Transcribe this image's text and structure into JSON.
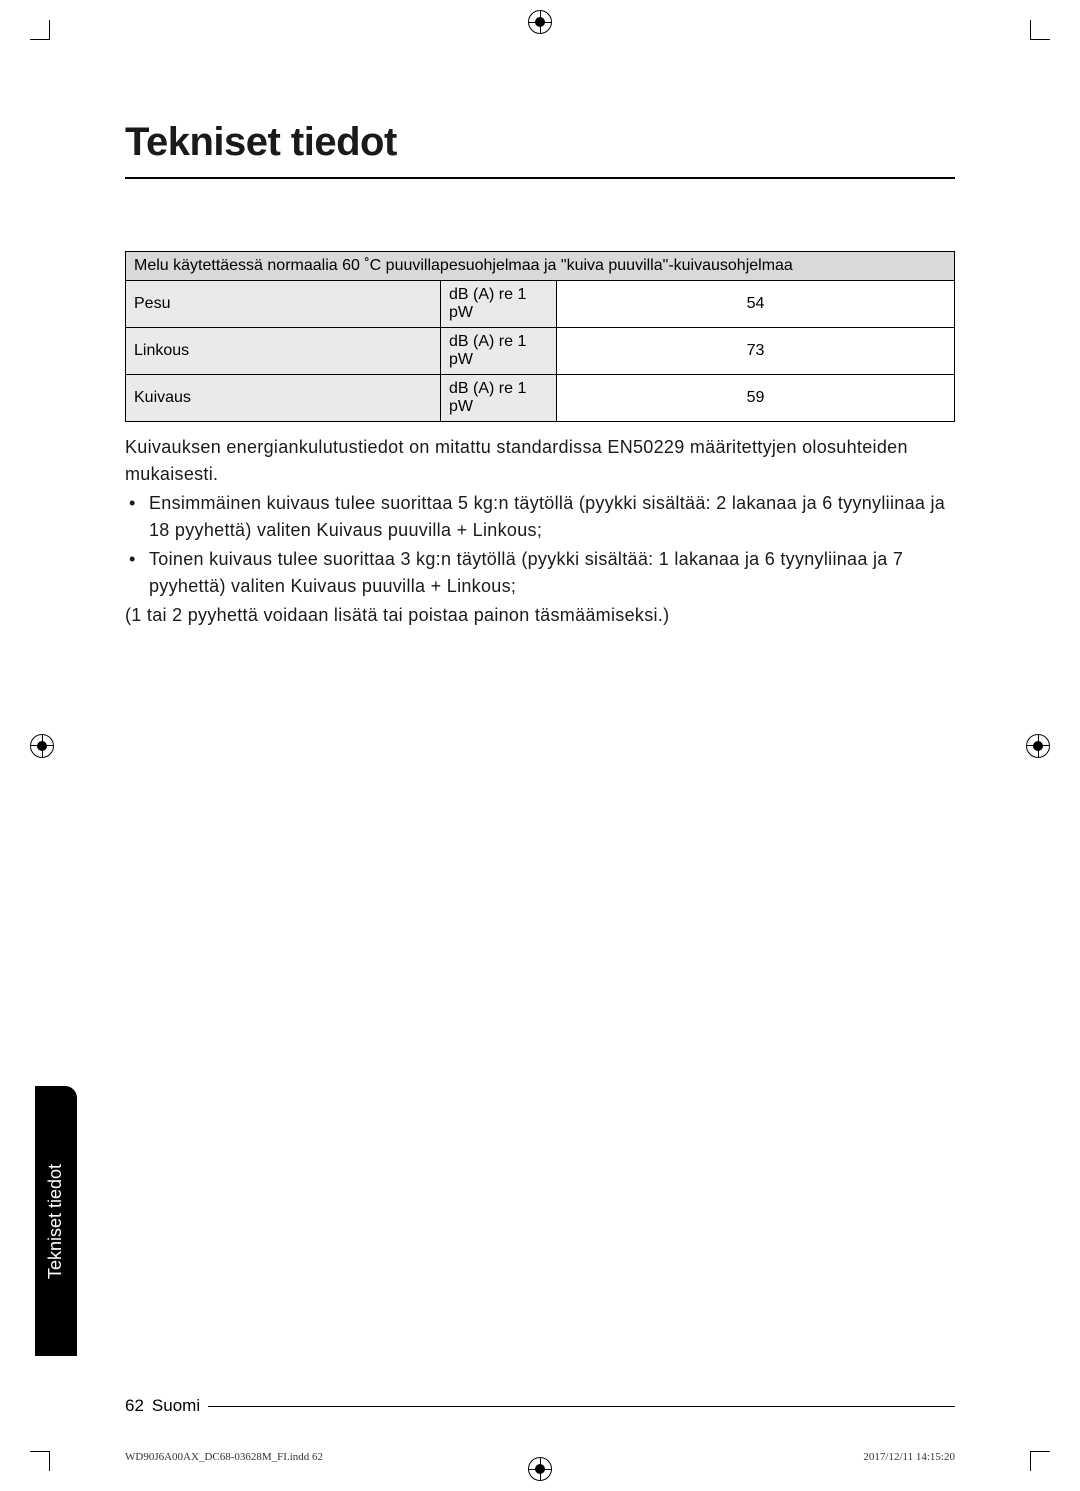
{
  "pageTitle": "Tekniset tiedot",
  "table": {
    "headerText": "Melu käytettäessä normaalia 60 ˚C puuvillapesuohjelmaa ja \"kuiva puuvilla\"-kuivausohjelmaa",
    "rows": [
      {
        "label": "Pesu",
        "unit": "dB (A) re 1 pW",
        "value": "54"
      },
      {
        "label": "Linkous",
        "unit": "dB (A) re 1 pW",
        "value": "73"
      },
      {
        "label": "Kuivaus",
        "unit": "dB (A) re 1 pW",
        "value": "59"
      }
    ]
  },
  "bodyText": {
    "intro": "Kuivauksen energiankulutustiedot on mitattu standardissa EN50229 määritettyjen olosuhteiden mukaisesti.",
    "bullet1": "Ensimmäinen kuivaus tulee suorittaa 5 kg:n täytöllä (pyykki sisältää: 2 lakanaa ja 6 tyynyliinaa ja 18 pyyhettä) valiten Kuivaus puuvilla + Linkous;",
    "bullet2": "Toinen kuivaus tulee suorittaa 3 kg:n täytöllä (pyykki sisältää: 1 lakanaa ja 6 tyynyliinaa ja 7 pyyhettä) valiten Kuivaus puuvilla + Linkous;",
    "note": "(1 tai 2 pyyhettä voidaan lisätä tai poistaa painon täsmäämiseksi.)"
  },
  "sideTab": "Tekniset tiedot",
  "footer": {
    "pageNum": "62",
    "lang": "Suomi"
  },
  "printFooter": {
    "file": "WD90J6A00AX_DC68-03628M_FI.indd   62",
    "timestamp": "2017/12/11   14:15:20"
  }
}
